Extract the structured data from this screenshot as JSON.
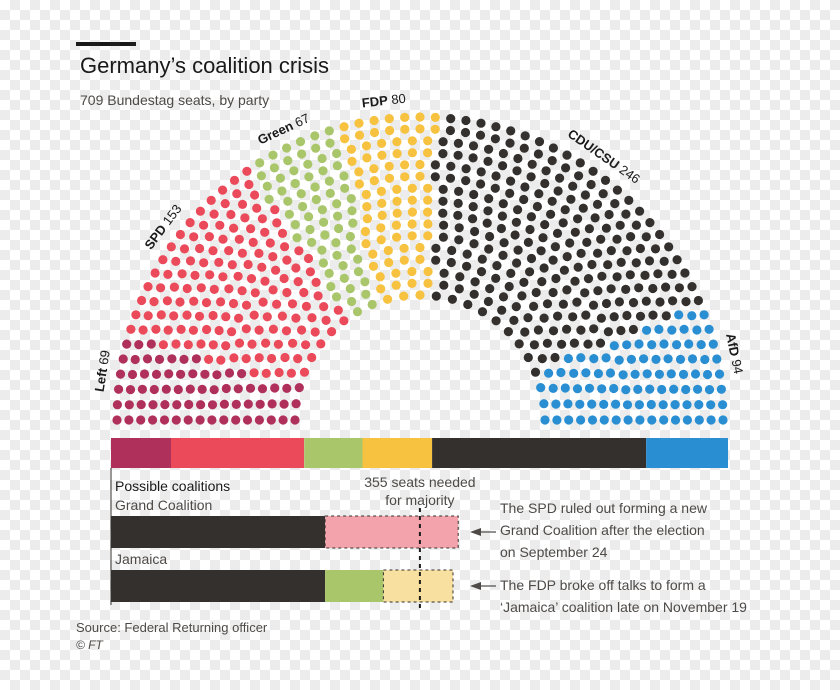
{
  "title": "Germany’s coalition crisis",
  "subtitle": "709 Bundestag seats, by party",
  "source": "Source: Federal Returning officer",
  "copyright": "© FT",
  "chart_data": [
    {
      "type": "parliament",
      "total_seats": 709,
      "parties": [
        {
          "name": "Left",
          "seats": 69,
          "color": "#b0305c"
        },
        {
          "name": "SPD",
          "seats": 153,
          "color": "#eb4a5a"
        },
        {
          "name": "Green",
          "seats": 67,
          "color": "#a9c66b"
        },
        {
          "name": "FDP",
          "seats": 80,
          "color": "#f6c23f"
        },
        {
          "name": "CDU/CSU",
          "seats": 246,
          "color": "#33302e"
        },
        {
          "name": "AfD",
          "seats": 94,
          "color": "#2a8fd2"
        }
      ]
    },
    {
      "type": "bar",
      "title": "Possible coalitions",
      "threshold": {
        "value": 355,
        "label_line1": "355 seats needed",
        "label_line2": "for majority"
      },
      "xlim": [
        0,
        709
      ],
      "coalitions": [
        {
          "name": "Grand Coalition",
          "segments": [
            {
              "party": "CDU/CSU",
              "seats": 246,
              "color": "#33302e",
              "ruled_out": false
            },
            {
              "party": "SPD",
              "seats": 153,
              "color": "#f3a3ab",
              "ruled_out": true
            }
          ],
          "note": [
            "The SPD ruled out forming a new",
            "Grand Coalition after the election",
            "on September 24"
          ]
        },
        {
          "name": "Jamaica",
          "segments": [
            {
              "party": "CDU/CSU",
              "seats": 246,
              "color": "#33302e",
              "ruled_out": false
            },
            {
              "party": "Green",
              "seats": 67,
              "color": "#a9c66b",
              "ruled_out": false
            },
            {
              "party": "FDP",
              "seats": 80,
              "color": "#f8e0a0",
              "ruled_out": true
            }
          ],
          "note": [
            "The FDP broke off talks to form a",
            "‘Jamaica’ coalition late on November 19"
          ]
        }
      ]
    }
  ]
}
